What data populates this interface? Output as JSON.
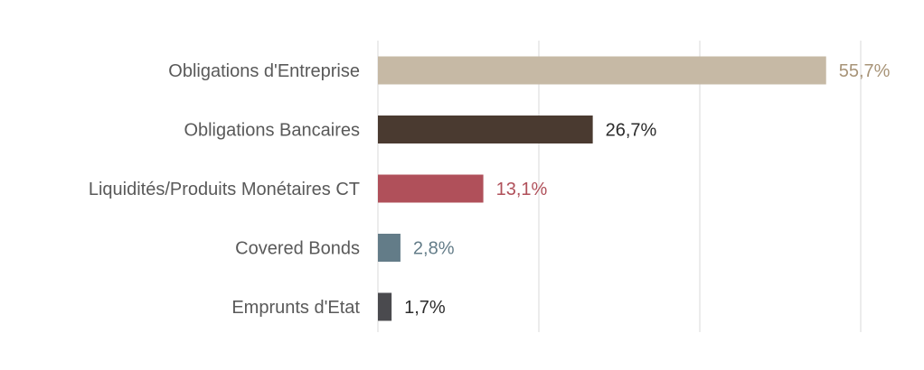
{
  "chart_data": {
    "type": "bar",
    "orientation": "horizontal",
    "categories": [
      "Obligations d'Entreprise",
      "Obligations Bancaires",
      "Liquidités/Produits Monétaires CT",
      "Covered Bonds",
      "Emprunts d'Etat"
    ],
    "values": [
      55.7,
      26.7,
      13.1,
      2.8,
      1.7
    ],
    "value_labels": [
      "55,7%",
      "26,7%",
      "13,1%",
      "2,8%",
      "1,7%"
    ],
    "bar_colors": [
      "#c6b9a5",
      "#4a3a30",
      "#b0505a",
      "#637c88",
      "#4a4a4e"
    ],
    "label_colors": [
      "#a89478",
      "#2b2b2b",
      "#b0505a",
      "#637c88",
      "#2b2b2b"
    ],
    "xlim": [
      0,
      60
    ],
    "gridlines_at": [
      0,
      20,
      40,
      60
    ],
    "grid": true,
    "legend": "none",
    "title": "",
    "xlabel": "",
    "ylabel": ""
  }
}
